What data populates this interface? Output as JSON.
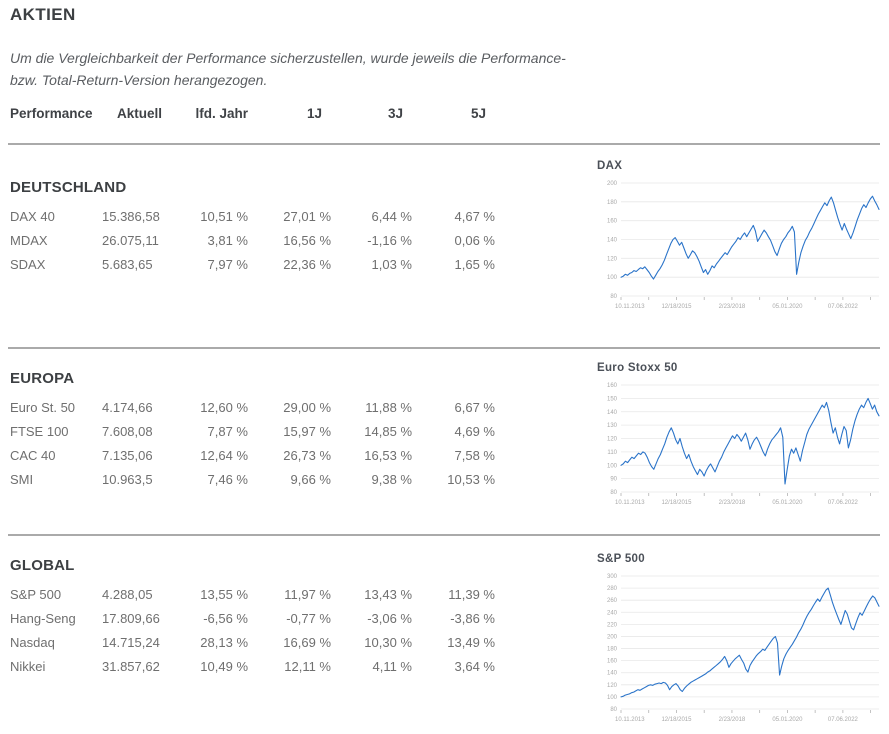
{
  "page": {
    "title": "AKTIEN",
    "disclaimer_lines": [
      "Um die Vergleichbarkeit der Performance sicherzustellen, wurde jeweils die Performance-",
      "bzw. Total-Return-Version herangezogen."
    ],
    "colors": {
      "line_blue": "#2b74c9",
      "divider_gray": "#aaaaaa",
      "text_gray": "#6f6f6f",
      "heading_gray": "#3d4043"
    }
  },
  "table": {
    "headers": [
      "Performance",
      "Aktuell",
      "lfd. Jahr",
      "1J",
      "3J",
      "5J"
    ],
    "sections": [
      {
        "name": "DEUTSCHLAND",
        "rows": [
          {
            "label": "DAX 40",
            "values": [
              "15.386,58",
              "10,51 %",
              "27,01 %",
              "6,44 %",
              "4,67 %"
            ]
          },
          {
            "label": "MDAX",
            "values": [
              "26.075,11",
              "3,81 %",
              "16,56 %",
              "-1,16 %",
              "0,06 %"
            ]
          },
          {
            "label": "SDAX",
            "values": [
              "5.683,65",
              "7,97 %",
              "22,36 %",
              "1,03 %",
              "1,65 %"
            ]
          }
        ]
      },
      {
        "name": "EUROPA",
        "rows": [
          {
            "label": "Euro St. 50",
            "values": [
              "4.174,66",
              "12,60 %",
              "29,00 %",
              "11,88 %",
              "6,67 %"
            ]
          },
          {
            "label": "FTSE 100",
            "values": [
              "7.608,08",
              "7,87 %",
              "15,97 %",
              "14,85 %",
              "4,69 %"
            ]
          },
          {
            "label": "CAC 40",
            "values": [
              "7.135,06",
              "12,64 %",
              "26,73 %",
              "16,53 %",
              "7,58 %"
            ]
          },
          {
            "label": "SMI",
            "values": [
              "10.963,5",
              "7,46 %",
              "9,66 %",
              "9,38 %",
              "10,53 %"
            ]
          }
        ]
      },
      {
        "name": "GLOBAL",
        "rows": [
          {
            "label": "S&P 500",
            "values": [
              "4.288,05",
              "13,55 %",
              "11,97 %",
              "13,43 %",
              "11,39 %"
            ]
          },
          {
            "label": "Hang-Seng",
            "values": [
              "17.809,66",
              "-6,56 %",
              "-0,77 %",
              "-3,06 %",
              "-3,86 %"
            ]
          },
          {
            "label": "Nasdaq",
            "values": [
              "14.715,24",
              "28,13 %",
              "16,69 %",
              "10,30 %",
              "13,49 %"
            ]
          },
          {
            "label": "Nikkei",
            "values": [
              "31.857,62",
              "10,49 %",
              "12,11 %",
              "4,11 %",
              "3,64 %"
            ]
          }
        ]
      }
    ]
  },
  "chart_data": [
    {
      "type": "line",
      "title": "DAX",
      "xlabel": "",
      "ylabel": "",
      "ylim": [
        80,
        200
      ],
      "y_ticks": [
        80,
        100,
        120,
        140,
        160,
        180,
        200
      ],
      "x_tick_labels": [
        "10.11.2013",
        "12/18/2015",
        "2/23/2018",
        "05.01.2020",
        "07.06.2022"
      ],
      "grid": true,
      "legend": false,
      "values": [
        100,
        101,
        103,
        102,
        104,
        105,
        107,
        106,
        108,
        110,
        109,
        111,
        108,
        105,
        101,
        98,
        102,
        106,
        109,
        113,
        118,
        124,
        130,
        136,
        140,
        142,
        138,
        134,
        137,
        131,
        125,
        120,
        124,
        128,
        126,
        122,
        117,
        111,
        105,
        108,
        103,
        107,
        112,
        110,
        114,
        117,
        120,
        123,
        126,
        124,
        128,
        132,
        135,
        138,
        142,
        140,
        144,
        147,
        143,
        147,
        151,
        155,
        149,
        138,
        142,
        146,
        150,
        147,
        143,
        139,
        133,
        127,
        123,
        130,
        136,
        140,
        143,
        147,
        150,
        154,
        148,
        103,
        116,
        126,
        133,
        139,
        143,
        148,
        152,
        157,
        162,
        167,
        171,
        175,
        179,
        176,
        181,
        185,
        179,
        171,
        163,
        156,
        150,
        157,
        151,
        146,
        141,
        147,
        154,
        161,
        167,
        173,
        177,
        174,
        179,
        183,
        186,
        181,
        177,
        172
      ]
    },
    {
      "type": "line",
      "title": "Euro Stoxx 50",
      "xlabel": "",
      "ylabel": "",
      "ylim": [
        80,
        160
      ],
      "y_ticks": [
        80,
        90,
        100,
        110,
        120,
        130,
        140,
        150,
        160
      ],
      "x_tick_labels": [
        "10.11.2013",
        "12/18/2015",
        "2/23/2018",
        "05.01.2020",
        "07.06.2022"
      ],
      "grid": true,
      "legend": false,
      "values": [
        100,
        101,
        103,
        102,
        104,
        106,
        105,
        107,
        109,
        108,
        110,
        109,
        106,
        102,
        99,
        97,
        101,
        105,
        108,
        112,
        116,
        121,
        125,
        128,
        124,
        119,
        116,
        120,
        114,
        109,
        105,
        108,
        103,
        99,
        96,
        93,
        97,
        95,
        92,
        96,
        99,
        101,
        98,
        95,
        99,
        103,
        106,
        110,
        113,
        116,
        119,
        122,
        120,
        123,
        121,
        118,
        121,
        124,
        119,
        112,
        116,
        119,
        121,
        118,
        114,
        110,
        107,
        112,
        116,
        119,
        121,
        123,
        125,
        128,
        121,
        86,
        97,
        107,
        112,
        109,
        113,
        108,
        103,
        111,
        117,
        123,
        127,
        130,
        133,
        136,
        139,
        142,
        145,
        143,
        147,
        141,
        132,
        124,
        128,
        121,
        116,
        123,
        129,
        126,
        113,
        119,
        127,
        133,
        138,
        142,
        145,
        143,
        147,
        150,
        146,
        142,
        145,
        140,
        137
      ]
    },
    {
      "type": "line",
      "title": "S&P 500",
      "xlabel": "",
      "ylabel": "",
      "ylim": [
        80,
        300
      ],
      "y_ticks": [
        80,
        100,
        120,
        140,
        160,
        180,
        200,
        220,
        240,
        260,
        280,
        300
      ],
      "x_tick_labels": [
        "10.11.2013",
        "12/18/2015",
        "2/23/2018",
        "05.01.2020",
        "07.06.2022"
      ],
      "grid": true,
      "legend": false,
      "values": [
        100,
        101,
        103,
        104,
        105,
        107,
        108,
        110,
        112,
        111,
        113,
        115,
        117,
        119,
        120,
        119,
        121,
        122,
        123,
        122,
        124,
        123,
        119,
        112,
        117,
        120,
        122,
        118,
        112,
        109,
        114,
        118,
        121,
        124,
        126,
        128,
        130,
        132,
        134,
        136,
        138,
        141,
        143,
        146,
        149,
        152,
        155,
        158,
        162,
        167,
        160,
        149,
        155,
        159,
        163,
        166,
        169,
        162,
        156,
        146,
        141,
        152,
        158,
        163,
        168,
        172,
        175,
        179,
        177,
        182,
        187,
        192,
        197,
        200,
        189,
        136,
        151,
        163,
        171,
        177,
        182,
        187,
        193,
        199,
        206,
        212,
        219,
        227,
        234,
        240,
        245,
        251,
        257,
        262,
        258,
        265,
        271,
        277,
        280,
        268,
        256,
        246,
        237,
        228,
        220,
        231,
        243,
        237,
        225,
        214,
        211,
        221,
        231,
        239,
        235,
        242,
        249,
        256,
        262,
        267,
        264,
        257,
        250
      ]
    }
  ]
}
